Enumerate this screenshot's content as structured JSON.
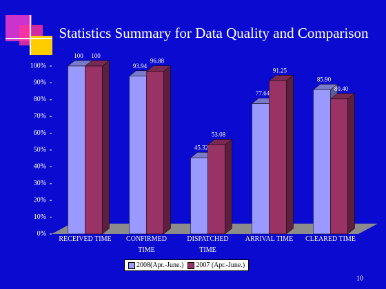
{
  "chart_data": {
    "type": "bar3d",
    "title": "Statistics Summary for Data Quality and Comparison",
    "categories": [
      "RECEIVED TIME",
      "CONFIRMED TIME",
      "DISPATCHED TIME",
      "ARRIVAL TIME",
      "CLEARED TIME"
    ],
    "series": [
      {
        "name": "2008(Apr.-June.)",
        "color": "#9999ff",
        "values": [
          100,
          93.94,
          45.32,
          77.64,
          85.9
        ],
        "value_labels": [
          "100",
          "93.94",
          "45.32",
          "77.64",
          "85.90"
        ]
      },
      {
        "name": "2007 (Apr.-June.)",
        "color": "#993366",
        "values": [
          100,
          96.88,
          53.08,
          91.25,
          80.4
        ],
        "value_labels": [
          "100",
          "96.88",
          "53.08",
          "91.25",
          "80.40"
        ]
      }
    ],
    "ylim": [
      0,
      100
    ],
    "yticks": [
      {
        "value": 0,
        "label": "0%"
      },
      {
        "value": 10,
        "label": "10%"
      },
      {
        "value": 20,
        "label": "20%"
      },
      {
        "value": 30,
        "label": "30%"
      },
      {
        "value": 40,
        "label": "40%"
      },
      {
        "value": 50,
        "label": "50%"
      },
      {
        "value": 60,
        "label": "60%"
      },
      {
        "value": 70,
        "label": "70%"
      },
      {
        "value": 80,
        "label": "80%"
      },
      {
        "value": 90,
        "label": "90%"
      },
      {
        "value": 100,
        "label": "100%"
      }
    ],
    "page_number": "10"
  }
}
